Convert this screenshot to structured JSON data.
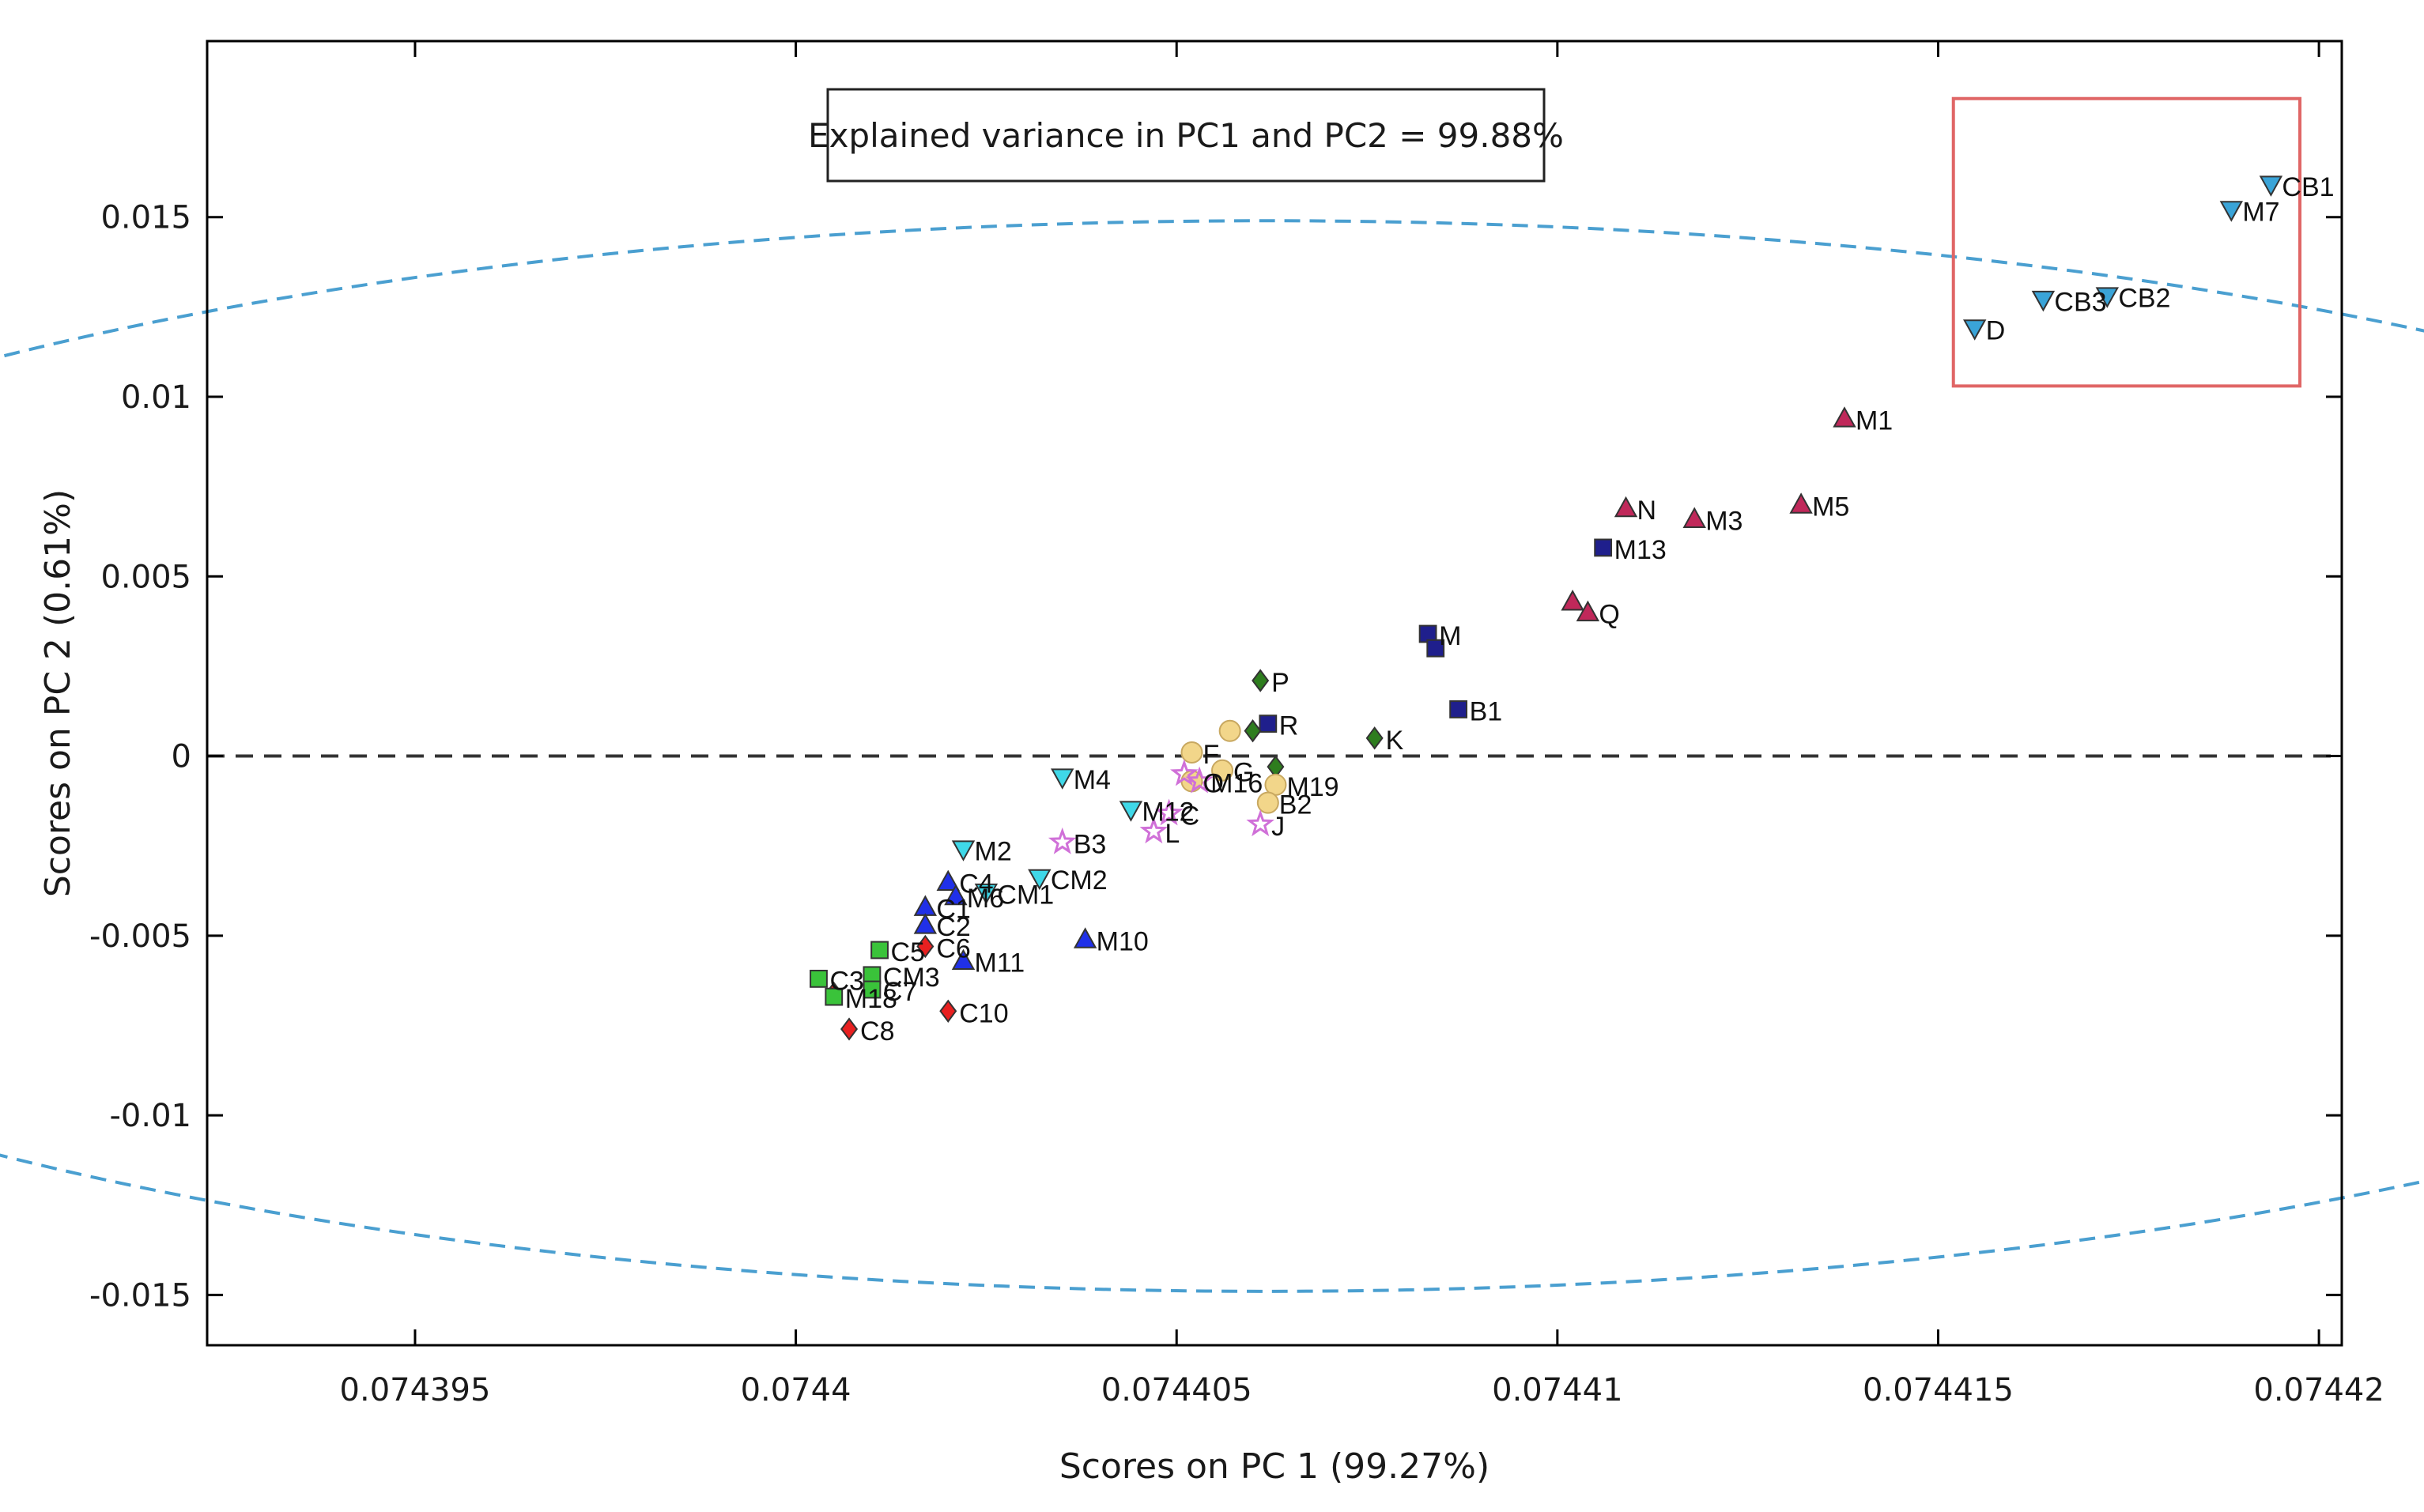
{
  "chart_data": {
    "type": "scatter",
    "title": "",
    "xlabel": "Scores on PC 1 (99.27%)",
    "ylabel": "Scores on PC 2 (0.61%)",
    "xlim": [
      0.07439227,
      0.0744203
    ],
    "ylim": [
      -0.0164,
      0.0199
    ],
    "xticks": [
      0.074395,
      0.0744,
      0.074405,
      0.07441,
      0.074415,
      0.07442
    ],
    "xtick_labels": [
      "0.074395",
      "0.0744",
      "0.074405",
      "0.07441",
      "0.074415",
      "0.07442"
    ],
    "yticks": [
      0.015,
      0.01,
      0.005,
      0,
      -0.005,
      -0.01,
      -0.015
    ],
    "ytick_labels": [
      "0.015",
      "0.01",
      "0.005",
      "0",
      "-0.005",
      "-0.01",
      "-0.015"
    ],
    "annotation": "Explained variance in PC1 and PC2 = 99.88%",
    "zero_line_y": 0,
    "confidence_ellipse": {
      "center": [
        0.0744062,
        0.0
      ],
      "semi_axes": [
        2.499e-05,
        0.0149
      ]
    },
    "highlight_box": {
      "x": [
        0.0744152,
        0.07441975
      ],
      "y": [
        0.0103,
        0.0183
      ]
    },
    "colors": {
      "crimson_up_triangle": "#c0285a",
      "navy_square": "#1f1f8c",
      "green_diamond": "#2e7d1e",
      "yellow_circle": "#f2d68a",
      "violet_star": "#d070d8",
      "cyan_down_triangle": "#3fd8e8",
      "blue_up_triangle": "#2030e8",
      "red_diamond": "#e82020",
      "lime_square": "#3ac33a",
      "sky_down_triangle": "#3aa4d8",
      "ellipse": "#4a9fd0",
      "box": "#e06666"
    },
    "series": [
      {
        "name": "crimson-up-triangle",
        "marker": "triangle-up",
        "color": "#c0285a",
        "points": [
          {
            "label": "M1",
            "x": 0.07441377,
            "y": 0.0094
          },
          {
            "label": "N",
            "x": 0.0744109,
            "y": 0.0069
          },
          {
            "label": "M3",
            "x": 0.0744118,
            "y": 0.0066
          },
          {
            "label": "M5",
            "x": 0.0744132,
            "y": 0.007
          },
          {
            "label": "",
            "x": 0.0744102,
            "y": 0.0043
          },
          {
            "label": "Q",
            "x": 0.0744104,
            "y": 0.004
          }
        ]
      },
      {
        "name": "navy-square",
        "marker": "square",
        "color": "#1f1f8c",
        "points": [
          {
            "label": "M13",
            "x": 0.0744106,
            "y": 0.0058
          },
          {
            "label": "M",
            "x": 0.0744083,
            "y": 0.0034
          },
          {
            "label": "",
            "x": 0.0744084,
            "y": 0.003
          },
          {
            "label": "B1",
            "x": 0.0744087,
            "y": 0.0013
          },
          {
            "label": "R",
            "x": 0.0744062,
            "y": 0.0009
          }
        ]
      },
      {
        "name": "green-diamond",
        "marker": "diamond",
        "color": "#2e7d1e",
        "points": [
          {
            "label": "P",
            "x": 0.0744061,
            "y": 0.0021
          },
          {
            "label": "",
            "x": 0.074406,
            "y": 0.0007
          },
          {
            "label": "K",
            "x": 0.0744076,
            "y": 0.0005
          },
          {
            "label": "",
            "x": 0.0744063,
            "y": -0.0003
          }
        ]
      },
      {
        "name": "yellow-circle",
        "marker": "circle",
        "color": "#f2d68a",
        "points": [
          {
            "label": "F",
            "x": 0.0744052,
            "y": 0.0001
          },
          {
            "label": "",
            "x": 0.0744057,
            "y": 0.0007
          },
          {
            "label": "O",
            "x": 0.0744052,
            "y": -0.0007
          },
          {
            "label": "G",
            "x": 0.0744056,
            "y": -0.0004
          },
          {
            "label": "M19",
            "x": 0.0744063,
            "y": -0.0008
          },
          {
            "label": "B2",
            "x": 0.0744062,
            "y": -0.0013
          }
        ]
      },
      {
        "name": "violet-star",
        "marker": "star",
        "color": "#d070d8",
        "points": [
          {
            "label": "",
            "x": 0.0744051,
            "y": -0.0005
          },
          {
            "label": "M16",
            "x": 0.0744053,
            "y": -0.0007
          },
          {
            "label": "J",
            "x": 0.0744061,
            "y": -0.0019
          },
          {
            "label": "L",
            "x": 0.0744047,
            "y": -0.0021
          },
          {
            "label": "B3",
            "x": 0.0744035,
            "y": -0.0024
          },
          {
            "label": "C",
            "x": 0.0744049,
            "y": -0.0016
          }
        ]
      },
      {
        "name": "cyan-down-triangle",
        "marker": "triangle-down",
        "color": "#3fd8e8",
        "points": [
          {
            "label": "M4",
            "x": 0.0744035,
            "y": -0.0006
          },
          {
            "label": "M12",
            "x": 0.0744044,
            "y": -0.0015
          },
          {
            "label": "M2",
            "x": 0.0744022,
            "y": -0.0026
          },
          {
            "label": "CM2",
            "x": 0.0744032,
            "y": -0.0034
          },
          {
            "label": "CM1",
            "x": 0.0744025,
            "y": -0.0038
          }
        ]
      },
      {
        "name": "blue-up-triangle",
        "marker": "triangle-up",
        "color": "#2030e8",
        "points": [
          {
            "label": "C4",
            "x": 0.074402,
            "y": -0.0035
          },
          {
            "label": "M6",
            "x": 0.0744021,
            "y": -0.0039
          },
          {
            "label": "C1",
            "x": 0.0744017,
            "y": -0.0042
          },
          {
            "label": "C2",
            "x": 0.0744017,
            "y": -0.0047
          },
          {
            "label": "M11",
            "x": 0.0744022,
            "y": -0.0057
          },
          {
            "label": "M10",
            "x": 0.0744038,
            "y": -0.0051
          }
        ]
      },
      {
        "name": "red-diamond",
        "marker": "diamond",
        "color": "#e82020",
        "points": [
          {
            "label": "C6",
            "x": 0.0744017,
            "y": -0.0053
          },
          {
            "label": "",
            "x": 0.074401,
            "y": -0.0064
          },
          {
            "label": "",
            "x": 0.0744005,
            "y": -0.0066
          },
          {
            "label": "C10",
            "x": 0.074402,
            "y": -0.0071
          },
          {
            "label": "C8",
            "x": 0.0744007,
            "y": -0.0076
          }
        ]
      },
      {
        "name": "lime-square",
        "marker": "square",
        "color": "#3ac33a",
        "points": [
          {
            "label": "C5",
            "x": 0.0744011,
            "y": -0.0054
          },
          {
            "label": "C3",
            "x": 0.0744003,
            "y": -0.0062
          },
          {
            "label": "CM3",
            "x": 0.074401,
            "y": -0.0061
          },
          {
            "label": "C7",
            "x": 0.074401,
            "y": -0.0065
          },
          {
            "label": "M18",
            "x": 0.0744005,
            "y": -0.0067
          }
        ]
      },
      {
        "name": "sky-down-triangle",
        "marker": "triangle-down",
        "color": "#3aa4d8",
        "points": [
          {
            "label": "CB1",
            "x": 0.07441937,
            "y": 0.0159
          },
          {
            "label": "M7",
            "x": 0.07441885,
            "y": 0.0152
          },
          {
            "label": "CB2",
            "x": 0.07441722,
            "y": 0.0128
          },
          {
            "label": "CB3",
            "x": 0.07441638,
            "y": 0.0127
          },
          {
            "label": "D",
            "x": 0.07441548,
            "y": 0.0119
          }
        ]
      }
    ]
  }
}
